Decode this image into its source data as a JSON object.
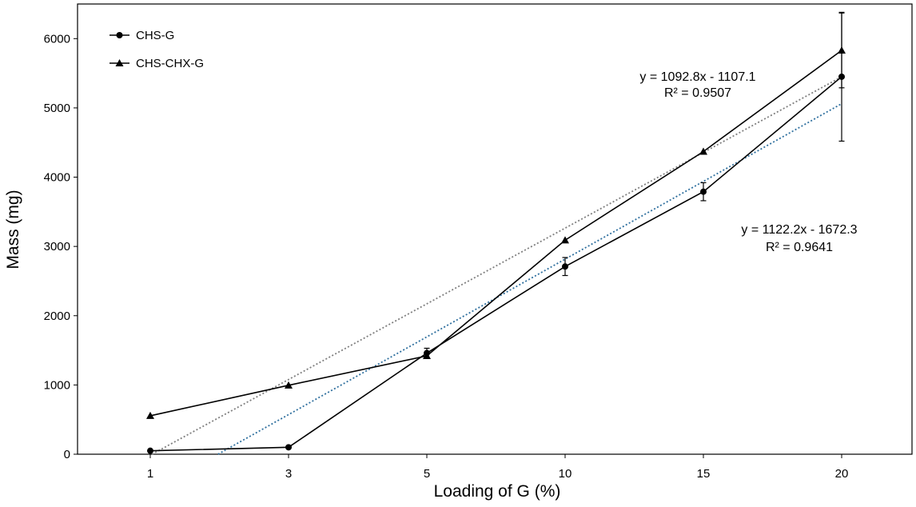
{
  "chart_data": {
    "type": "line",
    "categories": [
      "1",
      "3",
      "5",
      "10",
      "15",
      "20"
    ],
    "xlabel": "Loading of G (%)",
    "ylabel": "Mass (mg)",
    "ylim": [
      0,
      6500
    ],
    "yticks": [
      0,
      1000,
      2000,
      3000,
      4000,
      5000,
      6000
    ],
    "grid": false,
    "legend_position": "top-left",
    "series": [
      {
        "name": "CHS-G",
        "marker": "circle",
        "values": [
          50,
          100,
          1460,
          2710,
          3790,
          5450
        ],
        "errors": [
          0,
          0,
          70,
          130,
          130,
          930
        ],
        "trendline": {
          "slope": 1122.2,
          "intercept": -1672.3,
          "color": "#2e6f9e"
        }
      },
      {
        "name": "CHS-CHX-G",
        "marker": "triangle",
        "values": [
          555,
          995,
          1420,
          3090,
          4370,
          5830
        ],
        "errors": [
          0,
          0,
          0,
          0,
          0,
          540
        ],
        "trendline": {
          "slope": 1092.8,
          "intercept": -1107.1,
          "color": "#7f7f7f"
        }
      }
    ],
    "annotations": [
      {
        "target": "CHS-CHX-G",
        "line1": "y = 1092.8x - 1107.1",
        "line2": "R² = 0.9507"
      },
      {
        "target": "CHS-G",
        "line1": "y = 1122.2x - 1672.3",
        "line2": "R² = 0.9641"
      }
    ]
  }
}
